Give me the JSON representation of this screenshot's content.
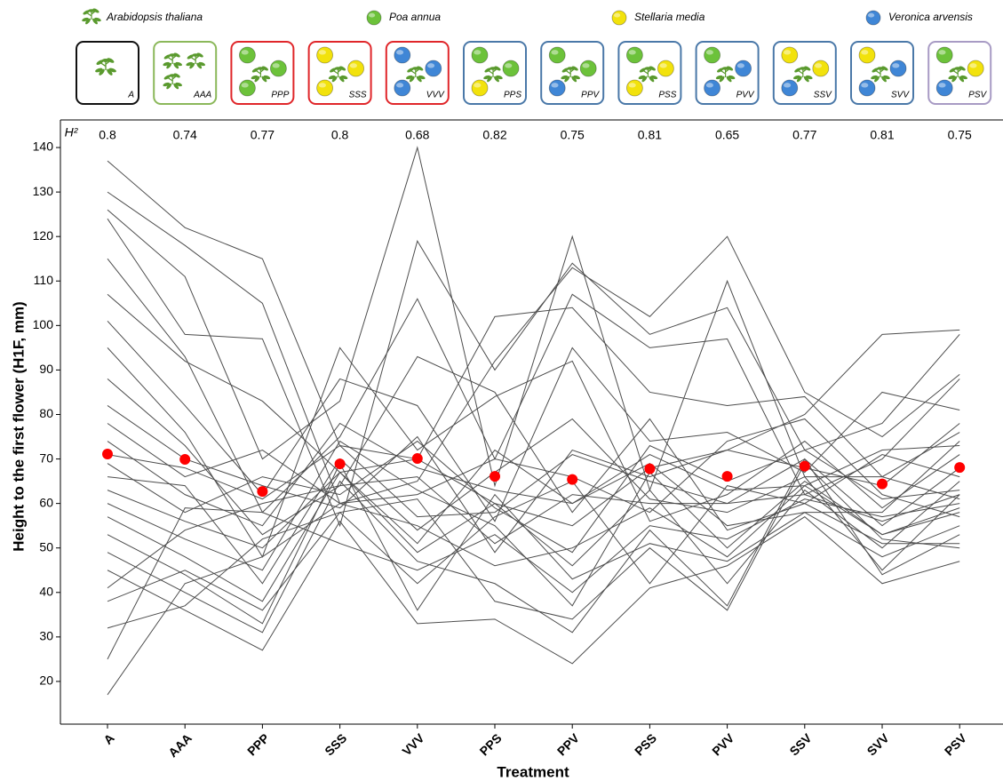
{
  "chart_data": {
    "type": "line",
    "y_label": "Height to the first flower (H1F, mm)",
    "x_label": "Treatment",
    "h2_label": "H²",
    "categories": [
      "A",
      "AAA",
      "PPP",
      "SSS",
      "VVV",
      "PPS",
      "PPV",
      "PSS",
      "PVV",
      "SSV",
      "SVV",
      "PSV"
    ],
    "h2_values": [
      0.8,
      0.74,
      0.77,
      0.8,
      0.68,
      0.82,
      0.75,
      0.81,
      0.65,
      0.77,
      0.81,
      0.75
    ],
    "species": [
      {
        "name": "Arabidopsis thaliana",
        "color": "#5a9a2e"
      },
      {
        "name": "Poa annua",
        "color": "#6cc23a"
      },
      {
        "name": "Stellaria media",
        "color": "#f2e20c"
      },
      {
        "name": "Veronica arvensis",
        "color": "#3f86d6"
      }
    ],
    "treatment_box_colors": [
      "#111111",
      "#8bb85a",
      "#e0262a",
      "#e0262a",
      "#e0262a",
      "#4a78a8",
      "#4a78a8",
      "#4a78a8",
      "#4a78a8",
      "#4a78a8",
      "#4a78a8",
      "#a89bc4"
    ],
    "line_color": "#4d4d4d",
    "lines": [
      [
        137,
        122,
        115,
        73,
        70,
        60,
        55,
        68,
        72,
        80,
        98,
        99
      ],
      [
        130,
        118,
        105,
        60,
        65,
        92,
        113,
        102,
        120,
        85,
        75,
        89
      ],
      [
        126,
        111,
        70,
        83,
        140,
        64,
        120,
        63,
        110,
        66,
        45,
        62
      ],
      [
        124,
        98,
        97,
        55,
        119,
        90,
        114,
        98,
        104,
        72,
        78,
        98
      ],
      [
        115,
        93,
        58,
        75,
        106,
        70,
        107,
        95,
        97,
        62,
        70,
        88
      ],
      [
        107,
        92,
        83,
        67,
        70,
        102,
        104,
        85,
        82,
        84,
        66,
        76
      ],
      [
        101,
        82,
        62,
        88,
        82,
        56,
        95,
        74,
        76,
        67,
        85,
        81
      ],
      [
        95,
        76,
        48,
        95,
        72,
        84,
        92,
        56,
        62,
        74,
        59,
        71
      ],
      [
        88,
        73,
        53,
        64,
        93,
        85,
        58,
        79,
        54,
        60,
        71,
        66
      ],
      [
        82,
        70,
        64,
        59,
        75,
        49,
        72,
        66,
        72,
        68,
        64,
        78
      ],
      [
        78,
        66,
        72,
        60,
        62,
        70,
        66,
        58,
        74,
        79,
        62,
        57
      ],
      [
        74,
        62,
        55,
        78,
        68,
        63,
        60,
        71,
        63,
        64,
        72,
        73
      ],
      [
        71,
        68,
        61,
        73,
        57,
        58,
        71,
        65,
        60,
        70,
        55,
        68
      ],
      [
        69,
        58,
        66,
        62,
        74,
        59,
        49,
        73,
        65,
        72,
        61,
        63
      ],
      [
        66,
        64,
        42,
        70,
        54,
        67,
        79,
        61,
        58,
        66,
        66,
        61
      ],
      [
        63,
        56,
        50,
        67,
        51,
        72,
        60,
        69,
        55,
        58,
        58,
        74
      ],
      [
        60,
        52,
        45,
        74,
        63,
        55,
        37,
        67,
        50,
        65,
        53,
        59
      ],
      [
        57,
        48,
        38,
        67,
        49,
        60,
        46,
        63,
        42,
        63,
        50,
        65
      ],
      [
        53,
        44,
        33,
        69,
        36,
        62,
        43,
        51,
        47,
        58,
        48,
        55
      ],
      [
        49,
        40,
        31,
        65,
        47,
        42,
        31,
        54,
        37,
        70,
        44,
        53
      ],
      [
        45,
        36,
        27,
        56,
        33,
        34,
        24,
        41,
        46,
        57,
        42,
        47
      ],
      [
        38,
        45,
        36,
        58,
        61,
        38,
        34,
        50,
        36,
        69,
        52,
        50
      ],
      [
        25,
        59,
        58,
        51,
        45,
        53,
        40,
        55,
        52,
        61,
        57,
        60
      ],
      [
        17,
        42,
        48,
        60,
        55,
        46,
        50,
        59,
        48,
        64,
        53,
        58
      ],
      [
        41,
        54,
        60,
        64,
        66,
        51,
        62,
        60,
        60,
        62,
        56,
        62
      ],
      [
        32,
        37,
        52,
        58,
        42,
        57,
        65,
        42,
        64,
        60,
        51,
        51
      ]
    ],
    "mean_color": "#ff0000",
    "mean_values": [
      71.1,
      69.9,
      62.7,
      68.9,
      70.1,
      66.1,
      65.4,
      67.8,
      66.1,
      68.4,
      64.4,
      68.1
    ],
    "ylim": [
      10.4,
      146.2
    ],
    "yticks": [
      20,
      30,
      40,
      50,
      60,
      70,
      80,
      90,
      100,
      110,
      120,
      130,
      140
    ]
  }
}
